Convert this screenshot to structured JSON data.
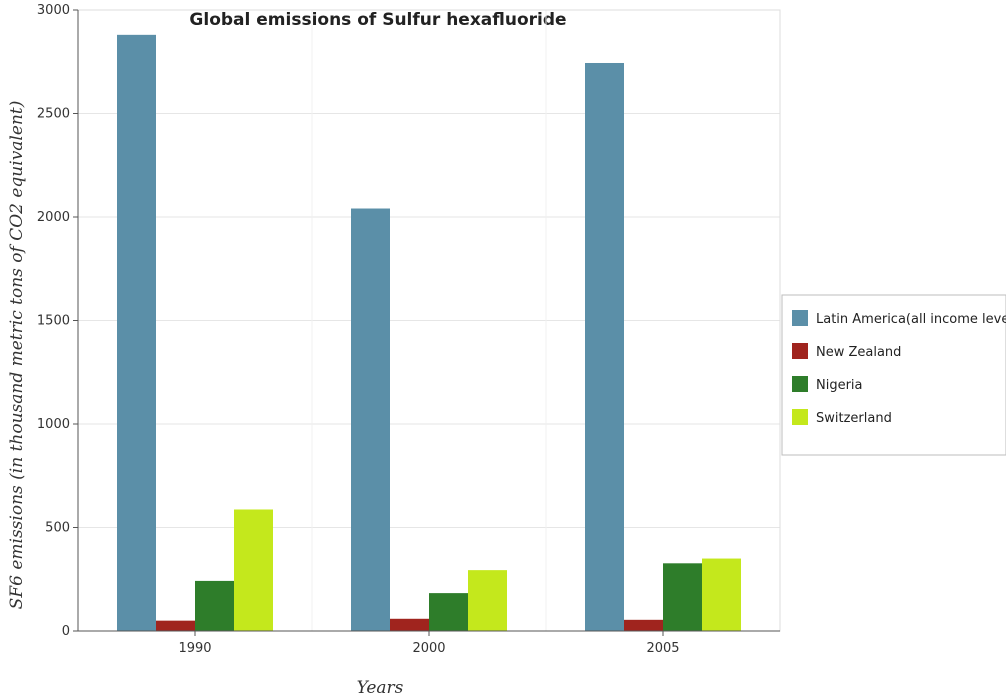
{
  "chart_data": {
    "type": "bar",
    "title": "Global emissions of Sulfur hexafluoride",
    "xlabel": "Years",
    "ylabel": "SF6 emissions (in thousand metric tons of CO2 equivalent)",
    "categories": [
      "1990",
      "2000",
      "2005"
    ],
    "ylim": [
      0,
      3000
    ],
    "yticks": [
      "0",
      "500",
      "1000",
      "1500",
      "2000",
      "2500",
      "3000"
    ],
    "grid": true,
    "legend_position": "right",
    "series": [
      {
        "name": "Latin America(all income levels)",
        "color": "#5b8fa8",
        "values": [
          2880,
          2041,
          2744
        ]
      },
      {
        "name": "New Zealand",
        "color": "#a0241e",
        "values": [
          50,
          59,
          54
        ]
      },
      {
        "name": "Nigeria",
        "color": "#2e7d2a",
        "values": [
          242,
          183,
          327
        ]
      },
      {
        "name": "Switzerland",
        "color": "#c4e81c",
        "values": [
          587,
          294,
          350
        ]
      }
    ]
  }
}
